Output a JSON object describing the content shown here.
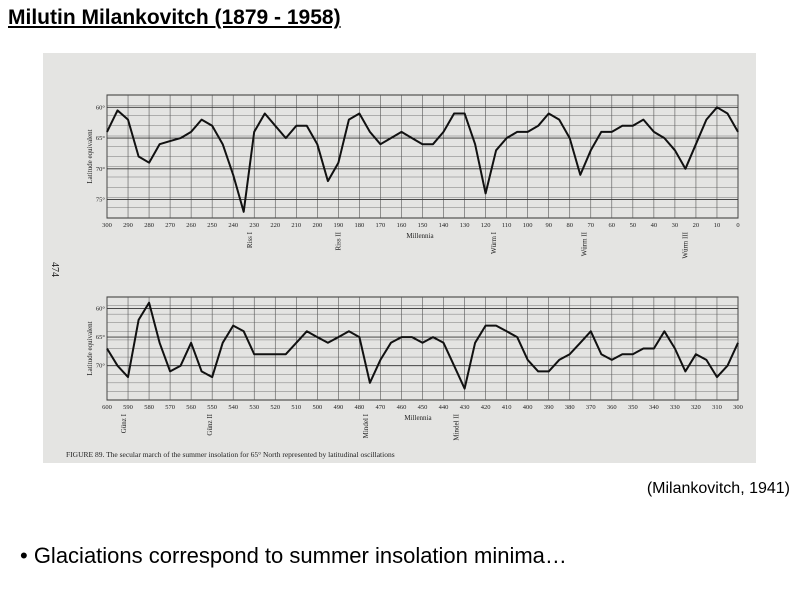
{
  "title": "Milutin Milankovitch (1879 - 1958)",
  "citation": "(Milankovitch, 1941)",
  "bullet": "• Glaciations correspond to summer insolation minima…",
  "figure": {
    "page_number": "474",
    "caption": "FIGURE 89. The secular march of the summer insolation for 65° North represented by latitudinal oscillations",
    "panels": [
      {
        "ylabel": "Latitude equivalent",
        "xlabel": "Millennia",
        "xlim": [
          300,
          0
        ],
        "ylim": [
          58,
          78
        ],
        "y_inverted": true,
        "xticks": [
          300,
          290,
          280,
          270,
          260,
          250,
          240,
          230,
          220,
          210,
          200,
          190,
          180,
          170,
          160,
          150,
          140,
          130,
          120,
          110,
          100,
          90,
          80,
          70,
          60,
          50,
          40,
          30,
          20,
          10,
          0
        ],
        "yticks": [
          {
            "value": 60,
            "label": "60°"
          },
          {
            "value": 65,
            "label": "65°"
          },
          {
            "value": 70,
            "label": "70°"
          },
          {
            "value": 75,
            "label": "75°"
          }
        ],
        "events": [
          {
            "label": "Riss I",
            "x": 231
          },
          {
            "label": "Riss II",
            "x": 189
          },
          {
            "label": "Würm I",
            "x": 115
          },
          {
            "label": "Würm II",
            "x": 72
          },
          {
            "label": "Würm III",
            "x": 24
          }
        ],
        "x": [
          300,
          295,
          290,
          285,
          280,
          275,
          270,
          265,
          260,
          255,
          250,
          245,
          240,
          235,
          230,
          225,
          220,
          215,
          210,
          205,
          200,
          195,
          190,
          185,
          180,
          175,
          170,
          165,
          160,
          155,
          150,
          145,
          140,
          135,
          130,
          125,
          120,
          115,
          110,
          105,
          100,
          95,
          90,
          85,
          80,
          75,
          70,
          65,
          60,
          55,
          50,
          45,
          40,
          35,
          30,
          25,
          20,
          15,
          10,
          5,
          0
        ],
        "values": [
          64,
          60.5,
          62,
          68,
          69,
          66,
          65.5,
          65,
          64,
          62,
          63,
          66,
          71,
          77,
          64,
          61,
          63,
          65,
          63,
          63,
          66,
          72,
          69,
          62,
          61,
          64,
          66,
          65,
          64,
          65,
          66,
          66,
          64,
          61,
          61,
          66,
          74,
          67,
          65,
          64,
          64,
          63,
          61,
          62,
          65,
          71,
          67,
          64,
          64,
          63,
          63,
          62,
          64,
          65,
          67,
          70,
          66,
          62,
          60,
          61,
          64
        ]
      },
      {
        "ylabel": "Latitude equivalent",
        "xlabel": "Millennia",
        "xlim": [
          600,
          300
        ],
        "ylim": [
          58,
          76
        ],
        "y_inverted": true,
        "xticks": [
          600,
          590,
          580,
          570,
          560,
          550,
          540,
          530,
          520,
          510,
          500,
          490,
          480,
          470,
          460,
          450,
          440,
          430,
          420,
          410,
          400,
          390,
          380,
          370,
          360,
          350,
          340,
          330,
          320,
          310,
          300
        ],
        "yticks": [
          {
            "value": 60,
            "label": "60°"
          },
          {
            "value": 65,
            "label": "65°"
          },
          {
            "value": 70,
            "label": "70°"
          }
        ],
        "events": [
          {
            "label": "Günz I",
            "x": 591
          },
          {
            "label": "Günz II",
            "x": 550
          },
          {
            "label": "Mindel I",
            "x": 476
          },
          {
            "label": "Mindel II",
            "x": 433
          }
        ],
        "x": [
          600,
          595,
          590,
          585,
          580,
          575,
          570,
          565,
          560,
          555,
          550,
          545,
          540,
          535,
          530,
          525,
          520,
          515,
          510,
          505,
          500,
          495,
          490,
          485,
          480,
          475,
          470,
          465,
          460,
          455,
          450,
          445,
          440,
          435,
          430,
          425,
          420,
          415,
          410,
          405,
          400,
          395,
          390,
          385,
          380,
          375,
          370,
          365,
          360,
          355,
          350,
          345,
          340,
          335,
          330,
          325,
          320,
          315,
          310,
          305,
          300
        ],
        "values": [
          67,
          70,
          72,
          62,
          59,
          66,
          71,
          70,
          66,
          71,
          72,
          66,
          63,
          64,
          68,
          68,
          68,
          68,
          66,
          64,
          65,
          66,
          65,
          64,
          65,
          73,
          69,
          66,
          65,
          65,
          66,
          65,
          66,
          70,
          74,
          66,
          63,
          63,
          64,
          65,
          69,
          71,
          71,
          69,
          68,
          66,
          64,
          68,
          69,
          68,
          68,
          67,
          67,
          64,
          67,
          71,
          68,
          69,
          72,
          70,
          66
        ]
      }
    ]
  }
}
